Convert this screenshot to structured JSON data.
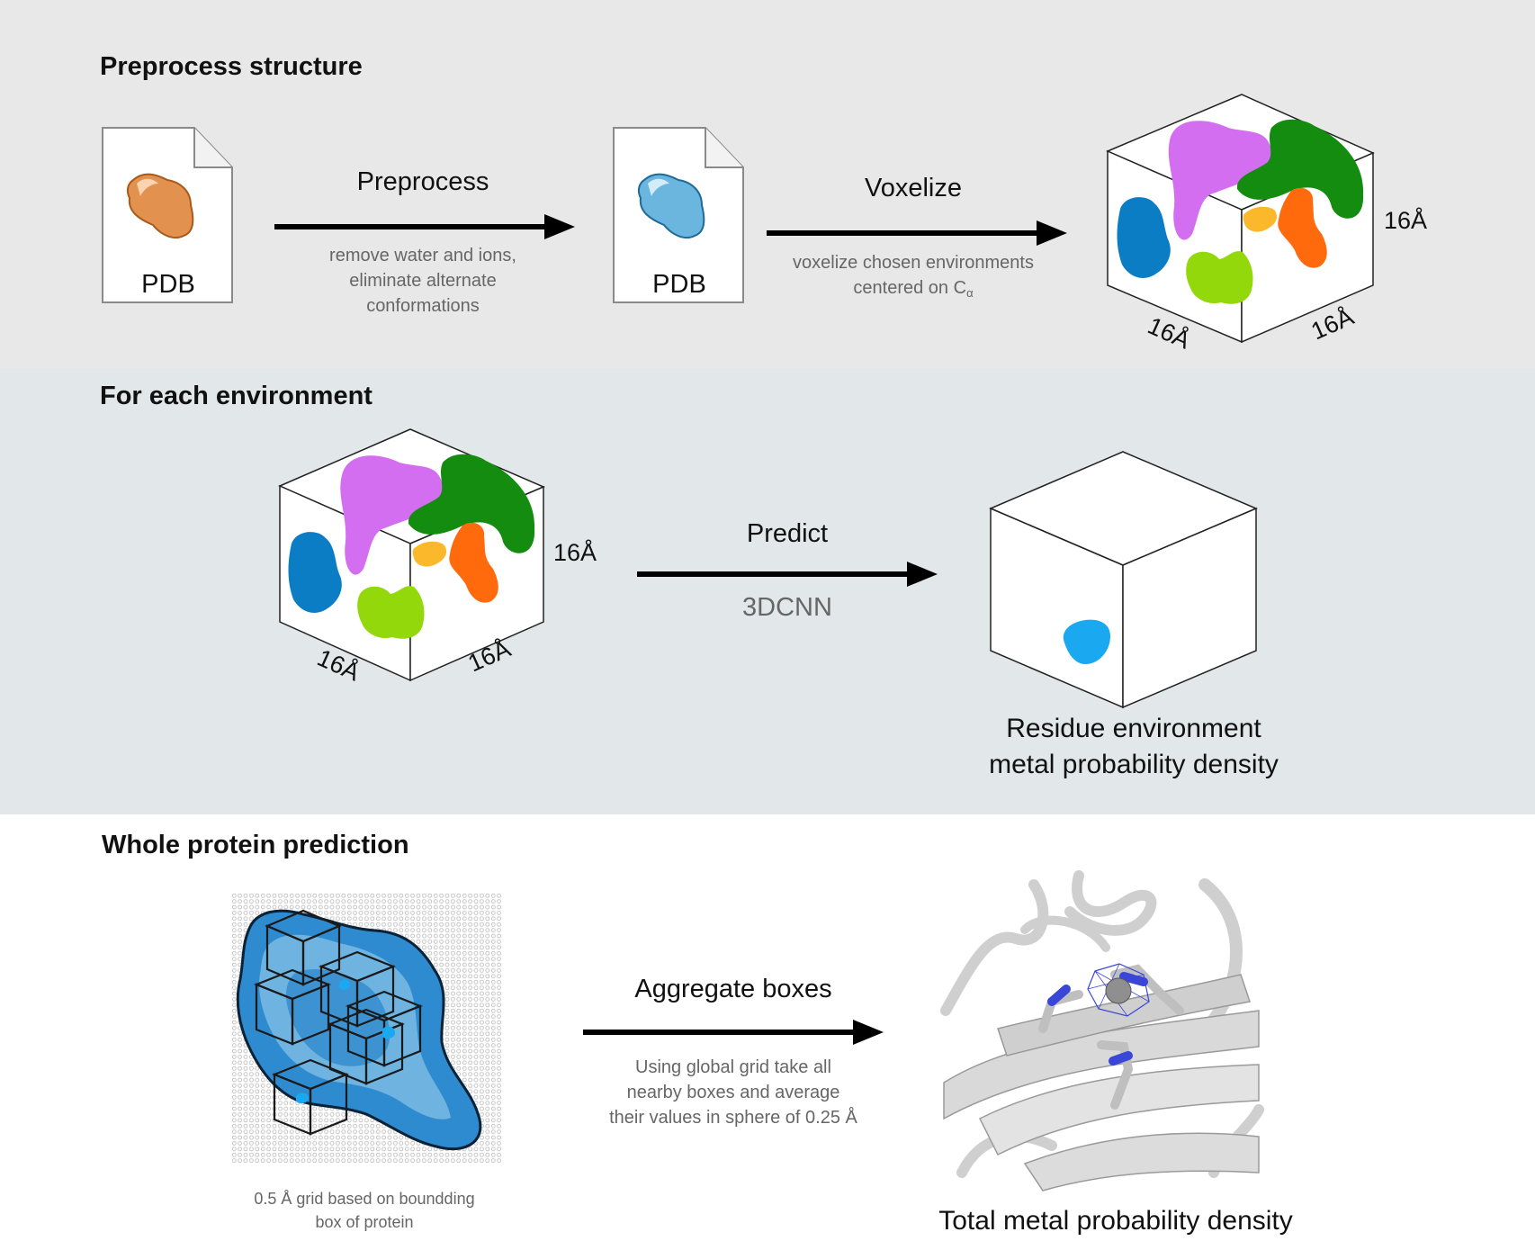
{
  "section1": {
    "heading": "Preprocess structure",
    "file1_label": "PDB",
    "file2_label": "PDB",
    "step1_title": "Preprocess",
    "step1_sub": [
      "remove water and ions,",
      "eliminate alternate",
      "conformations"
    ],
    "step2_title": "Voxelize",
    "step2_sub_line1": "voxelize chosen environments",
    "step2_sub_line2_prefix": "centered on C",
    "step2_sub_line2_subscript": "α",
    "dim_right": "16Å",
    "dim_left": "16Å",
    "dim_front": "16Å"
  },
  "section2": {
    "heading": "For each environment",
    "dim_right": "16Å",
    "dim_left": "16Å",
    "dim_front": "16Å",
    "step_title": "Predict",
    "step_sub": "3DCNN",
    "output_caption": [
      "Residue environment",
      "metal probability density"
    ]
  },
  "section3": {
    "heading": "Whole protein prediction",
    "grid_caption": [
      "0.5 Å grid based on boundding",
      "box of protein"
    ],
    "step_title": "Aggregate boxes",
    "step_sub": [
      "Using global grid take all",
      "nearby boxes and average",
      "their values in sphere of 0.25 Å"
    ],
    "output_caption": "Total metal probability density"
  },
  "colors": {
    "panel1_bg": "#e8e8e8",
    "panel2_bg": "#e2e7ea",
    "magenta": "#d36ef0",
    "green": "#138c10",
    "blue": "#0a7dc4",
    "lime": "#93d80a",
    "orange": "#ff6a0d",
    "yellow": "#fbb82a",
    "cyan": "#1aa9f0",
    "protein_orange": "#e2914f",
    "protein_blue": "#6ab6df"
  }
}
